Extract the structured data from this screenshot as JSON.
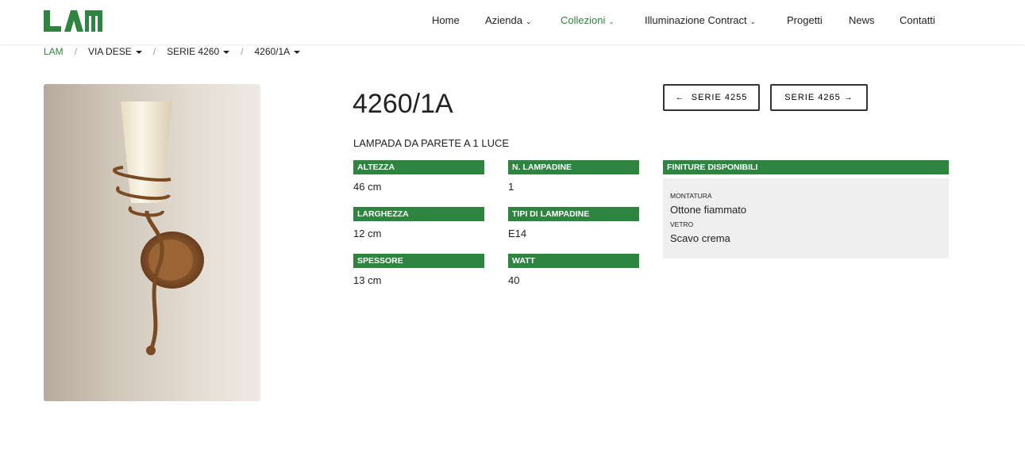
{
  "brand": {
    "logo_text": "LAM",
    "color": "#2e8540"
  },
  "nav": [
    {
      "label": "Home"
    },
    {
      "label": "Azienda",
      "dropdown": true
    },
    {
      "label": "Collezioni",
      "dropdown": true,
      "active": true
    },
    {
      "label": "Illuminazione Contract",
      "dropdown": true
    },
    {
      "label": "Progetti"
    },
    {
      "label": "News"
    },
    {
      "label": "Contatti"
    }
  ],
  "breadcrumb": [
    "LAM",
    "VIA DESE",
    "SERIE 4260",
    "4260/1A"
  ],
  "product": {
    "title": "4260/1A",
    "subtitle": "LAMPADA DA PARETE A 1 LUCE",
    "prev_label": "SERIE 4255",
    "next_label": "SERIE 4265",
    "specs": [
      {
        "label": "ALTEZZA",
        "value": "46 cm"
      },
      {
        "label": "N. LAMPADINE",
        "value": "1"
      },
      {
        "label": "LARGHEZZA",
        "value": "12 cm"
      },
      {
        "label": "TIPI DI LAMPADINE",
        "value": "E14"
      },
      {
        "label": "SPESSORE",
        "value": "13 cm"
      },
      {
        "label": "WATT",
        "value": "40"
      }
    ],
    "finishes": {
      "title": "FINITURE DISPONIBILI",
      "items": [
        {
          "key": "MONTATURA",
          "value": "Ottone fiammato"
        },
        {
          "key": "VETRO",
          "value": "Scavo crema"
        }
      ]
    }
  }
}
